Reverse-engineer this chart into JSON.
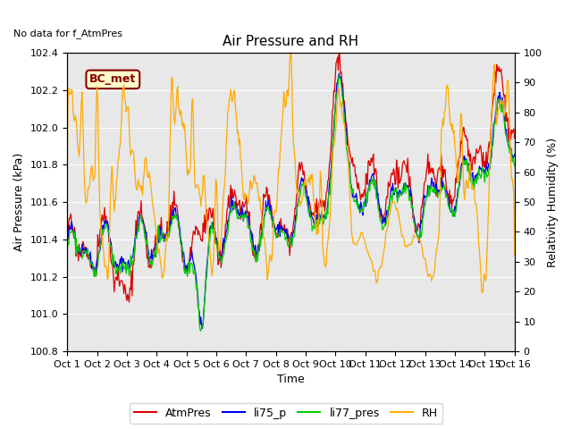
{
  "title": "Air Pressure and RH",
  "top_left_text": "No data for f_AtmPres",
  "box_label": "BC_met",
  "xlabel": "Time",
  "ylabel_left": "Air Pressure (kPa)",
  "ylabel_right": "Relativity Humidity (%)",
  "xlim": [
    0,
    15
  ],
  "ylim_left": [
    100.8,
    102.4
  ],
  "ylim_right": [
    0,
    100
  ],
  "yticks_left": [
    100.8,
    101.0,
    101.2,
    101.4,
    101.6,
    101.8,
    102.0,
    102.2,
    102.4
  ],
  "yticks_right": [
    0,
    10,
    20,
    30,
    40,
    50,
    60,
    70,
    80,
    90,
    100
  ],
  "xtick_labels": [
    "Oct 1",
    "Oct 2",
    "Oct 3",
    "Oct 4",
    "Oct 5",
    "Oct 6",
    "Oct 7",
    "Oct 8",
    "Oct 9",
    "Oct 10",
    "Oct 11",
    "Oct 12",
    "Oct 13",
    "Oct 14",
    "Oct 15",
    "Oct 16"
  ],
  "colors": {
    "AtmPres": "#dd0000",
    "li75_p": "#0000ee",
    "li77_pres": "#00cc00",
    "RH": "#ffaa00"
  },
  "background_color": "#e8e8e8",
  "grid_color": "#ffffff",
  "box_facecolor": "#ffffcc",
  "box_edgecolor": "#880000",
  "title_fontsize": 11,
  "axis_fontsize": 9,
  "tick_fontsize": 8
}
